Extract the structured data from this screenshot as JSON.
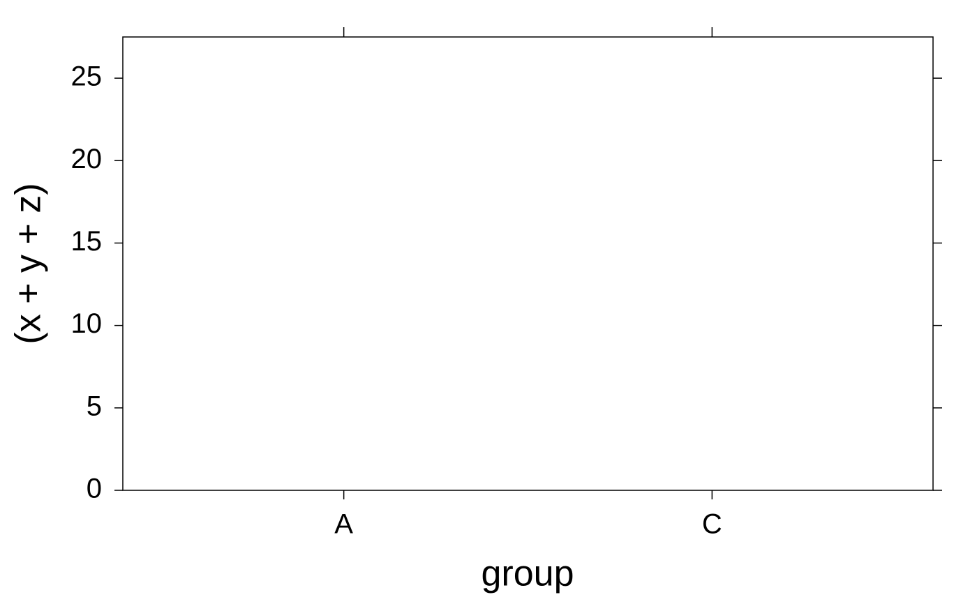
{
  "chart_data": {
    "type": "bar",
    "categories": [
      "A",
      "C"
    ],
    "x_label": "group",
    "y_label": "(x + y + z)",
    "ylim": [
      0,
      27.5
    ],
    "yticks": [
      0,
      5,
      10,
      15,
      20,
      25
    ]
  }
}
